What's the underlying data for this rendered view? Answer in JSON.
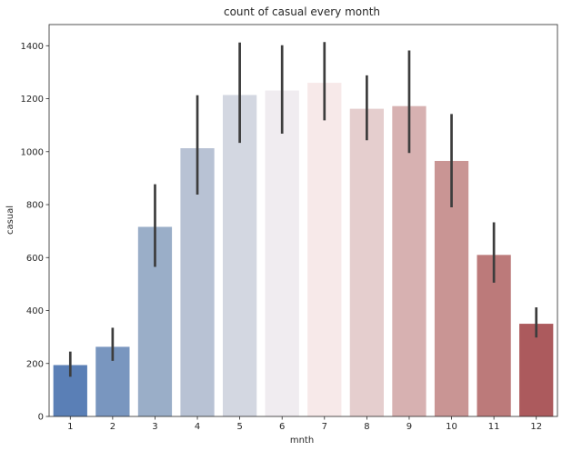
{
  "chart_data": {
    "type": "bar",
    "title": "count of casual every month",
    "xlabel": "mnth",
    "ylabel": "casual",
    "categories": [
      "1",
      "2",
      "3",
      "4",
      "5",
      "6",
      "7",
      "8",
      "9",
      "10",
      "11",
      "12"
    ],
    "values": [
      194,
      263,
      716,
      1013,
      1214,
      1231,
      1260,
      1162,
      1172,
      965,
      610,
      350
    ],
    "error_low": [
      150,
      210,
      565,
      838,
      1033,
      1068,
      1118,
      1043,
      995,
      790,
      505,
      298
    ],
    "error_high": [
      245,
      335,
      877,
      1213,
      1412,
      1402,
      1414,
      1288,
      1382,
      1142,
      733,
      412
    ],
    "colors": [
      "#5a7fb6",
      "#7996bf",
      "#9aaec8",
      "#b8c2d4",
      "#d3d7e1",
      "#f0ecf0",
      "#f7e9e9",
      "#e5cece",
      "#d7b1b1",
      "#c99594",
      "#bc7a7a",
      "#ac5a5d"
    ],
    "error_color": "#3d3d3d",
    "ylim": [
      0,
      1480
    ],
    "yticks": [
      0,
      200,
      400,
      600,
      800,
      1000,
      1200,
      1400
    ],
    "grid": false,
    "legend": "none"
  }
}
